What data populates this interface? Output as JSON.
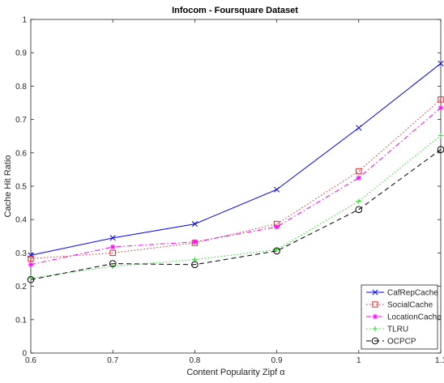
{
  "chart_data": {
    "type": "line",
    "title": "Infocom - Foursquare Dataset",
    "xlabel": "Content Popularity Zipf α",
    "ylabel": "Cache Hit Ratio",
    "xlim": [
      0.6,
      1.1
    ],
    "ylim": [
      0,
      1
    ],
    "x_ticks": [
      "0.6",
      "0.7",
      "0.8",
      "0.9",
      "1",
      "1.1"
    ],
    "y_ticks": [
      "0",
      "0.1",
      "0.2",
      "0.3",
      "0.4",
      "0.5",
      "0.6",
      "0.7",
      "0.8",
      "0.9",
      "1"
    ],
    "grid": false,
    "legend_position": "bottom-right",
    "x": [
      0.6,
      0.7,
      0.8,
      0.9,
      1.0,
      1.1
    ],
    "series": [
      {
        "name": "CafRepCache",
        "color": "#0000ff",
        "dash": "solid",
        "marker": "x",
        "values": [
          0.293,
          0.345,
          0.387,
          0.49,
          0.675,
          0.868
        ]
      },
      {
        "name": "SocialCache",
        "color": "#e8262a",
        "dash": "dotted",
        "marker": "square",
        "values": [
          0.283,
          0.3,
          0.33,
          0.387,
          0.545,
          0.76
        ]
      },
      {
        "name": "LocationCache",
        "color": "#ff00ff",
        "dash": "dashdot",
        "marker": "asterisk",
        "values": [
          0.265,
          0.318,
          0.333,
          0.378,
          0.525,
          0.735
        ]
      },
      {
        "name": "TLRU",
        "color": "#22dd22",
        "dash": "dotted",
        "marker": "plus",
        "values": [
          0.225,
          0.26,
          0.28,
          0.31,
          0.455,
          0.652
        ]
      },
      {
        "name": "OCPCP",
        "color": "#000000",
        "dash": "dashed",
        "marker": "circle",
        "values": [
          0.22,
          0.268,
          0.265,
          0.306,
          0.43,
          0.61
        ]
      }
    ]
  }
}
